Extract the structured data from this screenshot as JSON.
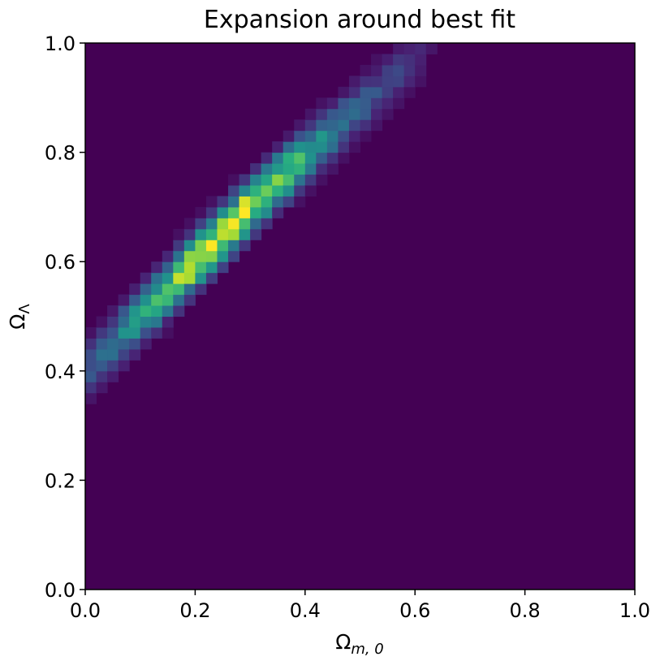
{
  "chart_data": {
    "type": "heatmap",
    "title": "Expansion around best fit",
    "xlabel": "Ω",
    "xlabel_sub": "m, 0",
    "ylabel": "Ω",
    "ylabel_sub": "Λ",
    "xlim": [
      0.0,
      1.0
    ],
    "ylim": [
      0.0,
      1.0
    ],
    "xticks": [
      "0.0",
      "0.2",
      "0.4",
      "0.6",
      "0.8",
      "1.0"
    ],
    "yticks": [
      "0.0",
      "0.2",
      "0.4",
      "0.6",
      "0.8",
      "1.0"
    ],
    "colormap": "viridis",
    "grid": false,
    "bins": 50,
    "ridge": {
      "description_points": [
        [
          0.0,
          0.4
        ],
        [
          0.25,
          0.65
        ],
        [
          0.33,
          0.73
        ],
        [
          0.6,
          0.97
        ]
      ],
      "peak": [
        0.26,
        0.65
      ]
    }
  },
  "colors": {
    "background": "#440154",
    "low": "#3b528b",
    "mid": "#21918c",
    "high": "#5ec962",
    "peak": "#fde725"
  }
}
